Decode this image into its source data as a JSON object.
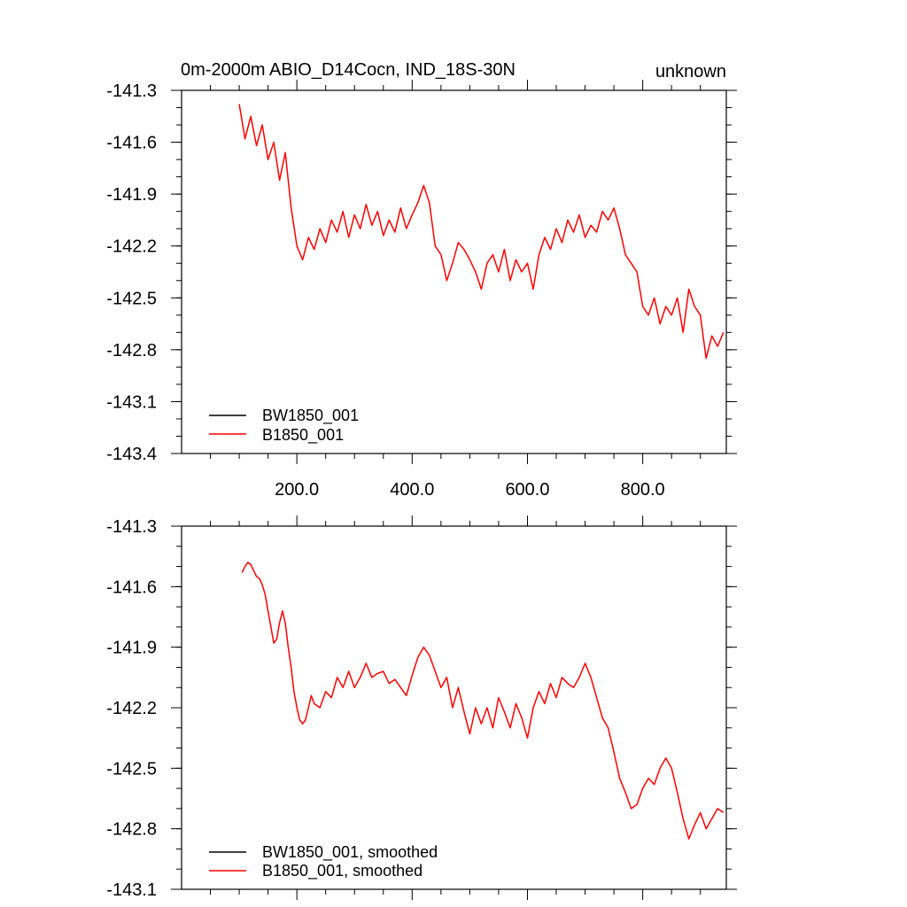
{
  "colors": {
    "series_black": "#000000",
    "series_red": "#ff0000",
    "axis": "#000000",
    "background": "#ffffff"
  },
  "chart_data": [
    {
      "type": "line",
      "title": "0m-2000m ABIO_D14Cocn, IND_18S-30N",
      "right_title": "unknown",
      "xlabel": "",
      "ylabel": "",
      "xlim": [
        0,
        945
      ],
      "ylim": [
        -143.4,
        -141.3
      ],
      "x_ticks": [
        200,
        400,
        600,
        800
      ],
      "x_tick_labels": [
        "200.0",
        "400.0",
        "600.0",
        "800.0"
      ],
      "y_ticks": [
        -141.3,
        -141.6,
        -141.9,
        -142.2,
        -142.5,
        -142.8,
        -143.1,
        -143.4
      ],
      "y_tick_labels": [
        "-141.3",
        "-141.6",
        "-141.9",
        "-142.2",
        "-142.5",
        "-142.8",
        "-143.1",
        "-143.4"
      ],
      "grid": false,
      "legend_position": "bottom-left",
      "series": [
        {
          "name": "BW1850_001",
          "color": "#000000",
          "x": [],
          "values": []
        },
        {
          "name": "B1850_001",
          "color": "#ff0000",
          "x": [
            100,
            110,
            120,
            130,
            140,
            150,
            160,
            170,
            180,
            190,
            200,
            210,
            220,
            230,
            240,
            250,
            260,
            270,
            280,
            290,
            300,
            310,
            320,
            330,
            340,
            350,
            360,
            370,
            380,
            390,
            400,
            410,
            420,
            430,
            440,
            450,
            460,
            470,
            480,
            490,
            500,
            510,
            520,
            530,
            540,
            550,
            560,
            570,
            580,
            590,
            600,
            610,
            620,
            630,
            640,
            650,
            660,
            670,
            680,
            690,
            700,
            710,
            720,
            730,
            740,
            750,
            760,
            770,
            780,
            790,
            800,
            810,
            820,
            830,
            840,
            850,
            860,
            870,
            880,
            890,
            900,
            910,
            920,
            930,
            940
          ],
          "values": [
            -141.38,
            -141.58,
            -141.45,
            -141.62,
            -141.5,
            -141.7,
            -141.6,
            -141.82,
            -141.66,
            -141.98,
            -142.2,
            -142.28,
            -142.15,
            -142.22,
            -142.1,
            -142.18,
            -142.05,
            -142.12,
            -142.0,
            -142.15,
            -142.02,
            -142.1,
            -141.96,
            -142.08,
            -142.0,
            -142.14,
            -142.05,
            -142.12,
            -141.98,
            -142.1,
            -142.02,
            -141.95,
            -141.85,
            -141.95,
            -142.2,
            -142.25,
            -142.4,
            -142.3,
            -142.18,
            -142.22,
            -142.28,
            -142.35,
            -142.45,
            -142.3,
            -142.25,
            -142.35,
            -142.22,
            -142.4,
            -142.28,
            -142.35,
            -142.3,
            -142.45,
            -142.25,
            -142.15,
            -142.22,
            -142.1,
            -142.18,
            -142.05,
            -142.12,
            -142.02,
            -142.15,
            -142.08,
            -142.12,
            -142.0,
            -142.05,
            -141.98,
            -142.1,
            -142.25,
            -142.3,
            -142.35,
            -142.55,
            -142.6,
            -142.5,
            -142.65,
            -142.55,
            -142.6,
            -142.5,
            -142.7,
            -142.45,
            -142.55,
            -142.6,
            -142.85,
            -142.72,
            -142.78,
            -142.7
          ]
        }
      ]
    },
    {
      "type": "line",
      "title": "",
      "xlabel": "",
      "ylabel": "",
      "xlim": [
        0,
        945
      ],
      "ylim": [
        -143.1,
        -141.3
      ],
      "x_ticks": [
        200,
        400,
        600,
        800
      ],
      "y_ticks": [
        -141.3,
        -141.6,
        -141.9,
        -142.2,
        -142.5,
        -142.8,
        -143.1
      ],
      "y_tick_labels": [
        "-141.3",
        "-141.6",
        "-141.9",
        "-142.2",
        "-142.5",
        "-142.8",
        "-143.1"
      ],
      "grid": false,
      "legend_position": "bottom-left",
      "series": [
        {
          "name": "BW1850_001, smoothed",
          "color": "#000000",
          "x": [],
          "values": []
        },
        {
          "name": "B1850_001, smoothed",
          "color": "#ff0000",
          "x": [
            105,
            110,
            115,
            120,
            125,
            130,
            135,
            140,
            145,
            150,
            155,
            160,
            165,
            170,
            175,
            180,
            185,
            190,
            195,
            200,
            205,
            210,
            215,
            220,
            225,
            230,
            240,
            250,
            260,
            270,
            280,
            290,
            300,
            310,
            320,
            330,
            340,
            350,
            360,
            370,
            380,
            390,
            400,
            410,
            420,
            430,
            440,
            450,
            460,
            470,
            480,
            490,
            500,
            510,
            520,
            530,
            540,
            550,
            560,
            570,
            580,
            590,
            600,
            610,
            620,
            630,
            640,
            650,
            660,
            670,
            680,
            690,
            700,
            710,
            720,
            730,
            740,
            750,
            760,
            770,
            780,
            790,
            800,
            810,
            820,
            830,
            840,
            850,
            860,
            870,
            880,
            890,
            900,
            910,
            920,
            930,
            940
          ],
          "values": [
            -141.53,
            -141.5,
            -141.48,
            -141.49,
            -141.52,
            -141.55,
            -141.56,
            -141.59,
            -141.64,
            -141.72,
            -141.8,
            -141.88,
            -141.86,
            -141.78,
            -141.72,
            -141.78,
            -141.9,
            -142.0,
            -142.12,
            -142.2,
            -142.26,
            -142.28,
            -142.26,
            -142.2,
            -142.14,
            -142.18,
            -142.2,
            -142.12,
            -142.15,
            -142.05,
            -142.1,
            -142.02,
            -142.1,
            -142.05,
            -141.98,
            -142.05,
            -142.03,
            -142.02,
            -142.08,
            -142.06,
            -142.1,
            -142.14,
            -142.04,
            -141.95,
            -141.9,
            -141.94,
            -142.02,
            -142.1,
            -142.05,
            -142.2,
            -142.1,
            -142.22,
            -142.33,
            -142.2,
            -142.28,
            -142.2,
            -142.3,
            -142.15,
            -142.22,
            -142.3,
            -142.18,
            -142.25,
            -142.35,
            -142.2,
            -142.12,
            -142.18,
            -142.08,
            -142.15,
            -142.05,
            -142.08,
            -142.1,
            -142.05,
            -141.98,
            -142.05,
            -142.15,
            -142.25,
            -142.3,
            -142.42,
            -142.55,
            -142.62,
            -142.7,
            -142.68,
            -142.6,
            -142.55,
            -142.58,
            -142.5,
            -142.45,
            -142.5,
            -142.62,
            -142.75,
            -142.85,
            -142.78,
            -142.72,
            -142.8,
            -142.75,
            -142.7,
            -142.72
          ]
        }
      ]
    }
  ]
}
